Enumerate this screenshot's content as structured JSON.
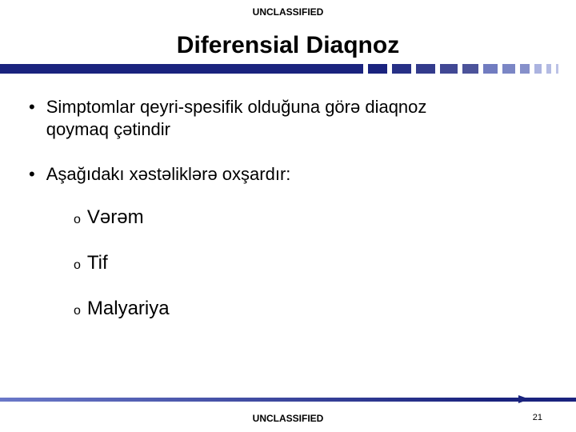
{
  "classification": "UNCLASSIFIED",
  "title": "Diferensial Diaqnoz",
  "bullets": {
    "b1_line1": "Simptomlar qeyri-spesifik olduğuna görə diaqnoz",
    "b1_line2": "qoymaq çətindir",
    "b2": "Aşağıdakı xəstəliklərə oxşardır:"
  },
  "subitems": {
    "s1": "Vərəm",
    "s2": "Tif",
    "s3": "Malyariya"
  },
  "page_number": "21",
  "colors": {
    "accent": "#1a237e",
    "accent_mid": "#3a4aa8",
    "accent_light": "#6a78c8",
    "text": "#000000",
    "background": "#ffffff"
  },
  "title_bar": {
    "solid_width_pct": 63,
    "dash_widths": [
      24,
      24,
      24,
      22,
      20,
      18,
      16,
      12,
      9,
      6,
      3
    ]
  },
  "fonts": {
    "title_size": 30,
    "body_size": 22,
    "sub_size": 24,
    "label_size": 12
  }
}
